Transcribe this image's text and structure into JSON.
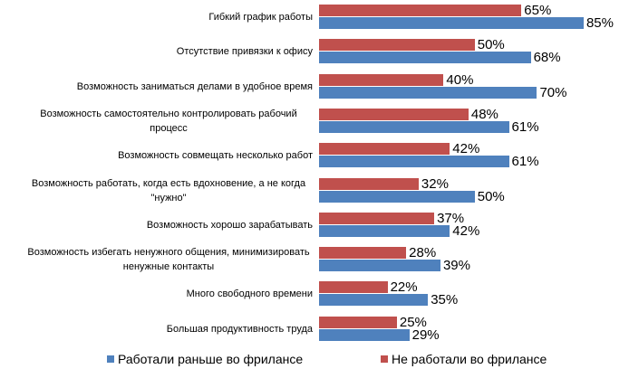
{
  "chart_data": {
    "type": "bar",
    "orientation": "horizontal",
    "categories": [
      "Гибкий график работы",
      "Отсутствие привязки к офису",
      "Возможность заниматься делами в удобное время",
      "Возможность самостоятельно контролировать рабочий процесс",
      "Возможность совмещать несколько работ",
      "Возможность работать, когда есть вдохновение, а не когда \"нужно\"",
      "Возможность хорошо зарабатывать",
      "Возможность избегать ненужного общения, минимизировать ненужные контакты",
      "Много свободного времени",
      "Большая продуктивность труда"
    ],
    "series": [
      {
        "name": "Работали раньше во фрилансе",
        "color": "#4f81bd",
        "values": [
          85,
          68,
          70,
          61,
          61,
          50,
          42,
          39,
          35,
          29
        ],
        "value_labels": [
          "85%",
          "68%",
          "70%",
          "61%",
          "61%",
          "50%",
          "42%",
          "39%",
          "35%",
          "29%"
        ]
      },
      {
        "name": "Не работали во фрилансе",
        "color": "#c0504d",
        "values": [
          65,
          50,
          40,
          48,
          42,
          32,
          37,
          28,
          22,
          25
        ],
        "value_labels": [
          "65%",
          "50%",
          "40%",
          "48%",
          "42%",
          "32%",
          "37%",
          "28%",
          "22%",
          "25%"
        ]
      }
    ],
    "legend": "bottom"
  }
}
